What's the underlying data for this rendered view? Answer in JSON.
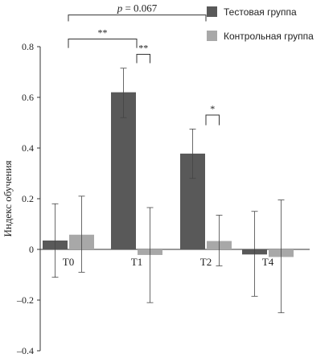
{
  "chart_data": {
    "type": "bar",
    "title": "",
    "xlabel": "",
    "ylabel": "Индекс обучения",
    "ylim": [
      -0.4,
      0.8
    ],
    "yticks": [
      -0.4,
      -0.2,
      0,
      0.2,
      0.4,
      0.6,
      0.8
    ],
    "ytick_labels": [
      "–0.4",
      "–0.2",
      "0",
      "0.2",
      "0.4",
      "0.6",
      "0.8"
    ],
    "categories": [
      "T0",
      "T1",
      "T2",
      "T4"
    ],
    "series": [
      {
        "name": "Тестовая группа",
        "color": "#595959",
        "values": [
          0.035,
          0.62,
          0.378,
          -0.02
        ],
        "err_low": [
          -0.11,
          0.52,
          0.28,
          -0.185
        ],
        "err_high": [
          0.18,
          0.715,
          0.475,
          0.15
        ]
      },
      {
        "name": "Контрольная группа",
        "color": "#a8a8a8",
        "values": [
          0.058,
          -0.022,
          0.033,
          -0.03
        ],
        "err_low": [
          -0.09,
          -0.21,
          -0.065,
          -0.25
        ],
        "err_high": [
          0.21,
          0.165,
          0.135,
          0.195
        ]
      }
    ],
    "legend_position": "top-right",
    "grid": false,
    "significance": [
      {
        "label": "p = 0.067",
        "from": "T0",
        "to": "T2",
        "level": 0.925,
        "drop": 0.025
      },
      {
        "label": "**",
        "from": "T0",
        "to": "T1",
        "level": 0.83,
        "drop": 0.035
      },
      {
        "label": "**",
        "from": "T1",
        "to": "T1-control",
        "level": 0.77,
        "drop": 0.035
      },
      {
        "label": "*",
        "from": "T2",
        "to": "T2-control",
        "level": 0.53,
        "drop": 0.04
      }
    ]
  }
}
